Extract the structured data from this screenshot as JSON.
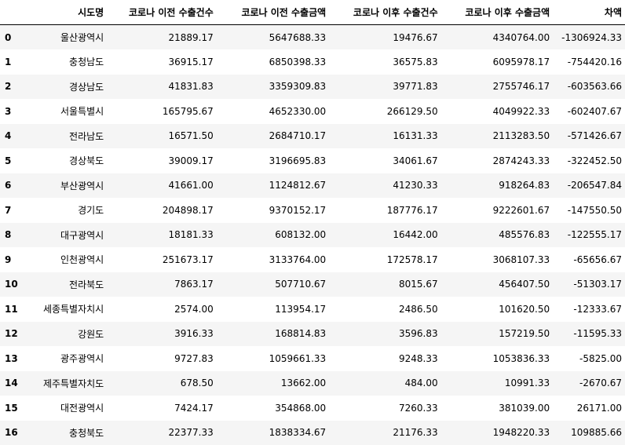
{
  "table": {
    "index_header": "",
    "columns": [
      "시도명",
      "코로나 이전 수출건수",
      "코로나 이전 수출금액",
      "코로나 이후 수출건수",
      "코로나 이후 수출금액",
      "차액"
    ],
    "rows": [
      {
        "index": "0",
        "cells": [
          "울산광역시",
          "21889.17",
          "5647688.33",
          "19476.67",
          "4340764.00",
          "-1306924.33"
        ]
      },
      {
        "index": "1",
        "cells": [
          "충청남도",
          "36915.17",
          "6850398.33",
          "36575.83",
          "6095978.17",
          "-754420.16"
        ]
      },
      {
        "index": "2",
        "cells": [
          "경상남도",
          "41831.83",
          "3359309.83",
          "39771.83",
          "2755746.17",
          "-603563.66"
        ]
      },
      {
        "index": "3",
        "cells": [
          "서울특별시",
          "165795.67",
          "4652330.00",
          "266129.50",
          "4049922.33",
          "-602407.67"
        ]
      },
      {
        "index": "4",
        "cells": [
          "전라남도",
          "16571.50",
          "2684710.17",
          "16131.33",
          "2113283.50",
          "-571426.67"
        ]
      },
      {
        "index": "5",
        "cells": [
          "경상북도",
          "39009.17",
          "3196695.83",
          "34061.67",
          "2874243.33",
          "-322452.50"
        ]
      },
      {
        "index": "6",
        "cells": [
          "부산광역시",
          "41661.00",
          "1124812.67",
          "41230.33",
          "918264.83",
          "-206547.84"
        ]
      },
      {
        "index": "7",
        "cells": [
          "경기도",
          "204898.17",
          "9370152.17",
          "187776.17",
          "9222601.67",
          "-147550.50"
        ]
      },
      {
        "index": "8",
        "cells": [
          "대구광역시",
          "18181.33",
          "608132.00",
          "16442.00",
          "485576.83",
          "-122555.17"
        ]
      },
      {
        "index": "9",
        "cells": [
          "인천광역시",
          "251673.17",
          "3133764.00",
          "172578.17",
          "3068107.33",
          "-65656.67"
        ]
      },
      {
        "index": "10",
        "cells": [
          "전라북도",
          "7863.17",
          "507710.67",
          "8015.67",
          "456407.50",
          "-51303.17"
        ]
      },
      {
        "index": "11",
        "cells": [
          "세종특별자치시",
          "2574.00",
          "113954.17",
          "2486.50",
          "101620.50",
          "-12333.67"
        ]
      },
      {
        "index": "12",
        "cells": [
          "강원도",
          "3916.33",
          "168814.83",
          "3596.83",
          "157219.50",
          "-11595.33"
        ]
      },
      {
        "index": "13",
        "cells": [
          "광주광역시",
          "9727.83",
          "1059661.33",
          "9248.33",
          "1053836.33",
          "-5825.00"
        ]
      },
      {
        "index": "14",
        "cells": [
          "제주특별자치도",
          "678.50",
          "13662.00",
          "484.00",
          "10991.33",
          "-2670.67"
        ]
      },
      {
        "index": "15",
        "cells": [
          "대전광역시",
          "7424.17",
          "354868.00",
          "7260.33",
          "381039.00",
          "26171.00"
        ]
      },
      {
        "index": "16",
        "cells": [
          "충청북도",
          "22377.33",
          "1838334.67",
          "21176.33",
          "1948220.33",
          "109885.66"
        ]
      }
    ]
  }
}
